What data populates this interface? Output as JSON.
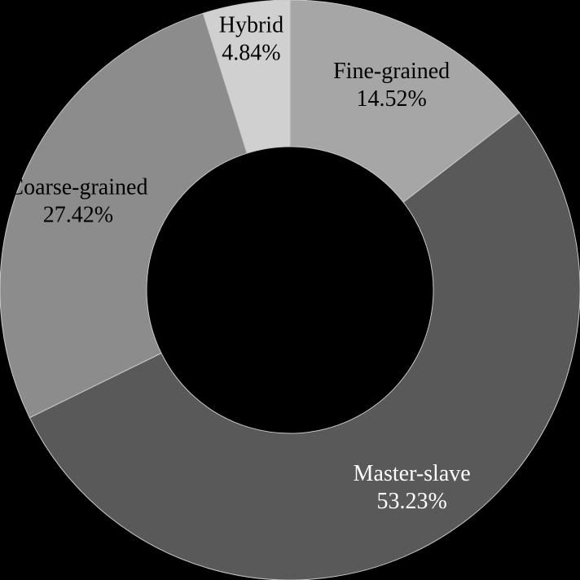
{
  "chart_data": {
    "type": "pie",
    "donut": true,
    "legend": "none",
    "slices": [
      {
        "name": "Fine-grained",
        "value": 14.52,
        "label": "14.52%",
        "color": "#a6a6a6",
        "text_color": "#000000"
      },
      {
        "name": "Master-slave",
        "value": 53.23,
        "label": "53.23%",
        "color": "#595959",
        "text_color": "#ffffff"
      },
      {
        "name": "Coarse-grained",
        "value": 27.42,
        "label": "27.42%",
        "color": "#8c8c8c",
        "text_color": "#000000"
      },
      {
        "name": "Hybrid",
        "value": 4.84,
        "label": "4.84%",
        "color": "#d0d0d0",
        "text_color": "#000000"
      }
    ]
  }
}
